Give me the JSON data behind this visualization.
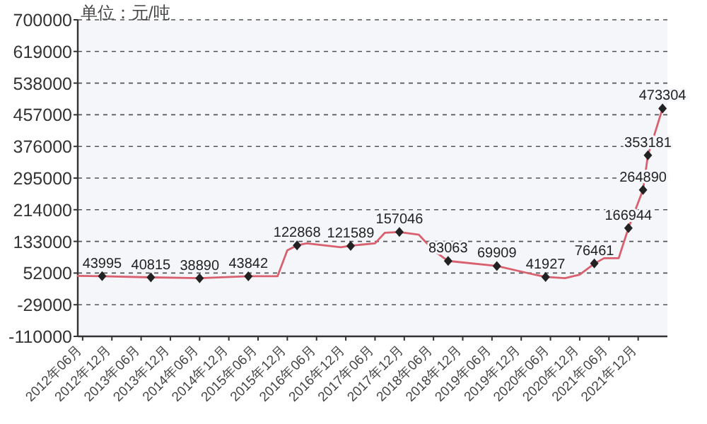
{
  "chart_data": {
    "type": "line",
    "ylabel": "单位：元/吨",
    "grid": "y",
    "xlim": [
      "2012-05",
      "2022-06"
    ],
    "xticks": [
      {
        "value": "2012-06",
        "label": "2012年06月"
      },
      {
        "value": "2012-12",
        "label": "2012年12月"
      },
      {
        "value": "2013-06",
        "label": "2013年06月"
      },
      {
        "value": "2013-12",
        "label": "2013年12月"
      },
      {
        "value": "2014-06",
        "label": "2014年06月"
      },
      {
        "value": "2014-12",
        "label": "2014年12月"
      },
      {
        "value": "2015-06",
        "label": "2015年06月"
      },
      {
        "value": "2015-12",
        "label": "2015年12月"
      },
      {
        "value": "2016-06",
        "label": "2016年06月"
      },
      {
        "value": "2016-12",
        "label": "2016年12月"
      },
      {
        "value": "2017-06",
        "label": "2017年06月"
      },
      {
        "value": "2017-12",
        "label": "2017年12月"
      },
      {
        "value": "2018-06",
        "label": "2018年06月"
      },
      {
        "value": "2018-12",
        "label": "2018年12月"
      },
      {
        "value": "2019-06",
        "label": "2019年06月"
      },
      {
        "value": "2019-12",
        "label": "2019年12月"
      },
      {
        "value": "2020-06",
        "label": "2020年06月"
      },
      {
        "value": "2020-12",
        "label": "2020年12月"
      },
      {
        "value": "2021-06",
        "label": "2021年06月"
      },
      {
        "value": "2021-12",
        "label": "2021年12月"
      }
    ],
    "ylim": [
      -110000,
      700000
    ],
    "yticks": [
      -110000,
      -29000,
      52000,
      133000,
      214000,
      295000,
      376000,
      457000,
      538000,
      619000,
      700000
    ],
    "series": [
      {
        "color": "#d9606e",
        "x": [
          "2012-05",
          "2012-10",
          "2013-08",
          "2014-06",
          "2015-04",
          "2015-10",
          "2015-12",
          "2016-02",
          "2016-04",
          "2016-11",
          "2017-01",
          "2017-06",
          "2017-08",
          "2017-11",
          "2018-03",
          "2018-06",
          "2018-09",
          "2019-07",
          "2020-02",
          "2020-05",
          "2020-09",
          "2020-12",
          "2021-03",
          "2021-05",
          "2021-08",
          "2021-10",
          "2022-01",
          "2022-02",
          "2022-05"
        ],
        "values": [
          45000,
          44000,
          41000,
          39000,
          44000,
          44000,
          110000,
          123000,
          128000,
          118000,
          122000,
          128000,
          155000,
          157000,
          150000,
          110000,
          83000,
          70000,
          50000,
          42000,
          39000,
          48000,
          76000,
          90000,
          90000,
          167000,
          265000,
          353000,
          473000
        ]
      },
      {
        "type": "scatter",
        "color": "#222222",
        "marker": "diamond",
        "x": [
          "2012-10",
          "2013-08",
          "2014-06",
          "2015-04",
          "2016-02",
          "2017-01",
          "2017-11",
          "2018-09",
          "2019-07",
          "2020-05",
          "2021-03",
          "2021-10",
          "2022-01",
          "2022-02",
          "2022-05"
        ],
        "values": [
          43995,
          40815,
          38890,
          43842,
          122868,
          121589,
          157046,
          83063,
          69909,
          41927,
          76461,
          166944,
          264890,
          353181,
          473304
        ],
        "value_labels": [
          "43995",
          "40815",
          "38890",
          "43842",
          "122868",
          "121589",
          "157046",
          "83063",
          "69909",
          "41927",
          "76461",
          "166944",
          "264890",
          "353181",
          "473304"
        ]
      }
    ]
  }
}
